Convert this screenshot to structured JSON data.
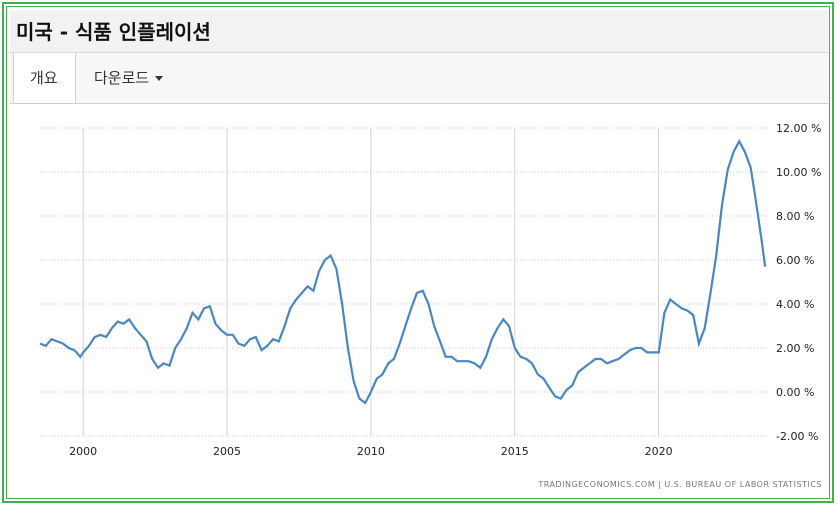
{
  "header": {
    "title": "미국 - 식품 인플레이션"
  },
  "tabs": {
    "overview": "개요",
    "download": "다운로드"
  },
  "source": "TRADINGECONOMICS.COM | U.S. BUREAU OF LABOR STATISTICS",
  "colors": {
    "line": "#4a86c0",
    "border": "#3fb24a",
    "grid": "#c8c8c8"
  },
  "chart_data": {
    "type": "line",
    "ylim": [
      -2,
      12
    ],
    "xlim": [
      1998.5,
      2023.8
    ],
    "y_ticks": [
      -2,
      0,
      2,
      4,
      6,
      8,
      10,
      12
    ],
    "y_tick_labels": [
      "-2.00 %",
      "0.00 %",
      "2.00 %",
      "4.00 %",
      "6.00 %",
      "8.00 %",
      "10.00 %",
      "12.00 %"
    ],
    "x_ticks": [
      2000,
      2005,
      2010,
      2015,
      2020
    ],
    "x_tick_labels": [
      "2000",
      "2005",
      "2010",
      "2015",
      "2020"
    ],
    "grid": true,
    "x": [
      1998.5,
      1998.7,
      1998.9,
      1999.1,
      1999.3,
      1999.5,
      1999.7,
      1999.9,
      2000.0,
      2000.2,
      2000.4,
      2000.6,
      2000.8,
      2001.0,
      2001.2,
      2001.4,
      2001.6,
      2001.8,
      2002.0,
      2002.2,
      2002.4,
      2002.6,
      2002.8,
      2003.0,
      2003.2,
      2003.4,
      2003.6,
      2003.8,
      2004.0,
      2004.2,
      2004.4,
      2004.6,
      2004.8,
      2005.0,
      2005.2,
      2005.4,
      2005.6,
      2005.8,
      2006.0,
      2006.2,
      2006.4,
      2006.6,
      2006.8,
      2007.0,
      2007.2,
      2007.4,
      2007.6,
      2007.8,
      2008.0,
      2008.2,
      2008.4,
      2008.6,
      2008.8,
      2009.0,
      2009.2,
      2009.4,
      2009.6,
      2009.8,
      2010.0,
      2010.2,
      2010.4,
      2010.6,
      2010.8,
      2011.0,
      2011.2,
      2011.4,
      2011.6,
      2011.8,
      2012.0,
      2012.2,
      2012.4,
      2012.6,
      2012.8,
      2013.0,
      2013.2,
      2013.4,
      2013.6,
      2013.8,
      2014.0,
      2014.2,
      2014.4,
      2014.6,
      2014.8,
      2015.0,
      2015.2,
      2015.4,
      2015.6,
      2015.8,
      2016.0,
      2016.2,
      2016.4,
      2016.6,
      2016.8,
      2017.0,
      2017.2,
      2017.4,
      2017.6,
      2017.8,
      2018.0,
      2018.2,
      2018.4,
      2018.6,
      2018.8,
      2019.0,
      2019.2,
      2019.4,
      2019.6,
      2019.8,
      2020.0,
      2020.2,
      2020.4,
      2020.6,
      2020.8,
      2021.0,
      2021.2,
      2021.4,
      2021.6,
      2021.8,
      2022.0,
      2022.2,
      2022.4,
      2022.6,
      2022.8,
      2023.0,
      2023.2,
      2023.4,
      2023.6,
      2023.7
    ],
    "values": [
      2.2,
      2.1,
      2.4,
      2.3,
      2.2,
      2.0,
      1.9,
      1.6,
      1.8,
      2.1,
      2.5,
      2.6,
      2.5,
      2.9,
      3.2,
      3.1,
      3.3,
      2.9,
      2.6,
      2.3,
      1.5,
      1.1,
      1.3,
      1.2,
      2.0,
      2.4,
      2.9,
      3.6,
      3.3,
      3.8,
      3.9,
      3.1,
      2.8,
      2.6,
      2.6,
      2.2,
      2.1,
      2.4,
      2.5,
      1.9,
      2.1,
      2.4,
      2.3,
      3.0,
      3.8,
      4.2,
      4.5,
      4.8,
      4.6,
      5.5,
      6.0,
      6.2,
      5.6,
      4.0,
      2.0,
      0.5,
      -0.3,
      -0.5,
      0.0,
      0.6,
      0.8,
      1.3,
      1.5,
      2.2,
      3.0,
      3.8,
      4.5,
      4.6,
      4.0,
      3.0,
      2.3,
      1.6,
      1.6,
      1.4,
      1.4,
      1.4,
      1.3,
      1.1,
      1.6,
      2.4,
      2.9,
      3.3,
      3.0,
      2.0,
      1.6,
      1.5,
      1.3,
      0.8,
      0.6,
      0.2,
      -0.2,
      -0.3,
      0.1,
      0.3,
      0.9,
      1.1,
      1.3,
      1.5,
      1.5,
      1.3,
      1.4,
      1.5,
      1.7,
      1.9,
      2.0,
      2.0,
      1.8,
      1.8,
      1.8,
      3.6,
      4.2,
      4.0,
      3.8,
      3.7,
      3.5,
      2.2,
      2.9,
      4.5,
      6.2,
      8.5,
      10.1,
      10.9,
      11.4,
      10.9,
      10.2,
      8.5,
      6.7,
      5.7
    ]
  }
}
